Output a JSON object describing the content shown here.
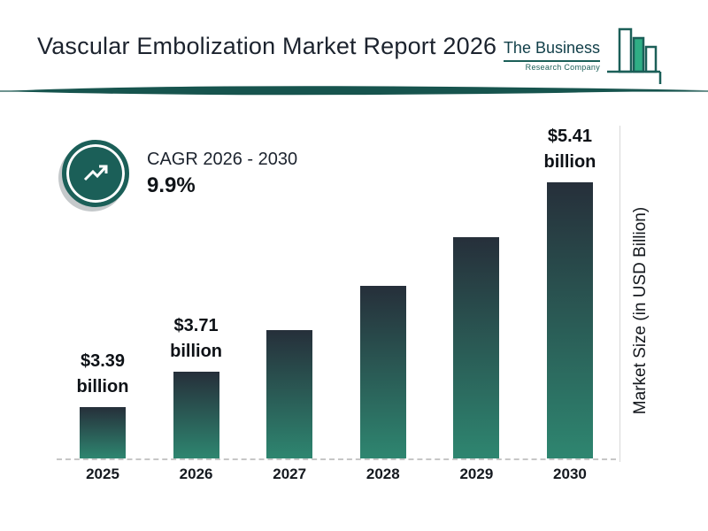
{
  "header": {
    "title": "Vascular Embolization Market Report 2026"
  },
  "logo": {
    "name": "The Business",
    "subtitle": "Research Company"
  },
  "cagr": {
    "label": "CAGR 2026 - 2030",
    "value": "9.9%"
  },
  "chart_data": {
    "type": "bar",
    "title": "Vascular Embolization Market Report 2026",
    "categories": [
      "2025",
      "2026",
      "2027",
      "2028",
      "2029",
      "2030"
    ],
    "values": [
      3.39,
      3.71,
      4.08,
      4.48,
      4.92,
      5.41
    ],
    "value_labels": [
      "$3.39\nbillion",
      "$3.71\nbillion",
      null,
      null,
      null,
      "$5.41\nbillion"
    ],
    "xlabel": "",
    "ylabel": "Market Size (in USD Billion)",
    "ylim": [
      3.0,
      5.8
    ],
    "grid": false,
    "legend": "none",
    "unit": "USD Billion",
    "cagr_value": "9.9%",
    "cagr_period": "2026 - 2030"
  },
  "colors": {
    "accent": "#1b5f58",
    "bar_top": "#262f3a",
    "bar_bottom": "#2e8670",
    "logo_green": "#2fae85",
    "divider": "#17544e"
  }
}
